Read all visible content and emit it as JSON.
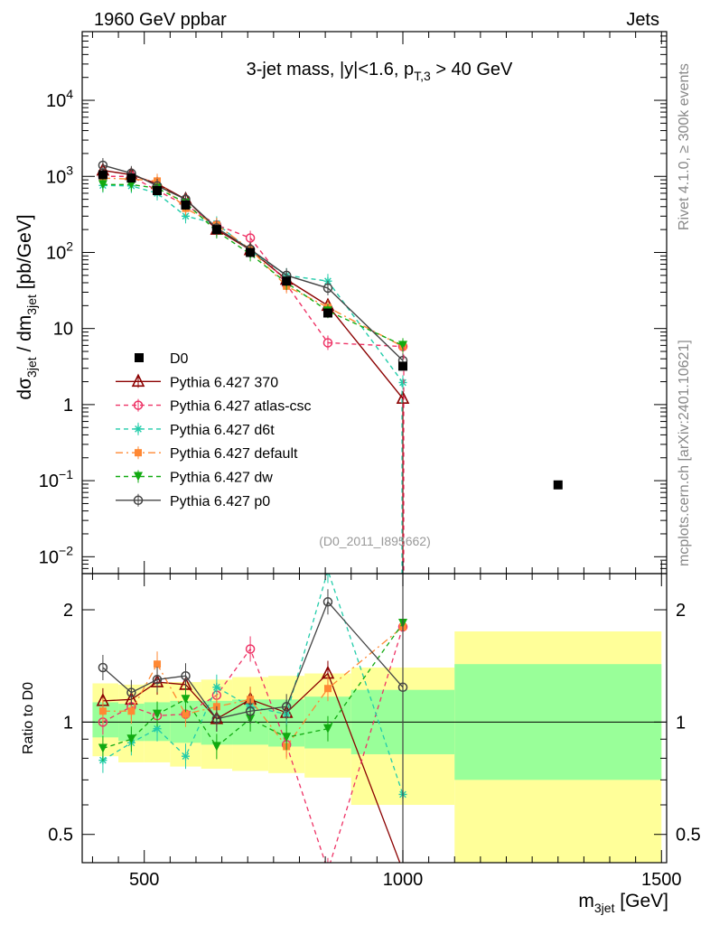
{
  "header": {
    "left": "1960 GeV ppbar",
    "right": "Jets"
  },
  "side_text": {
    "rivet": "Rivet 4.1.0, ≥ 300k events",
    "mcplots": "mcplots.cern.ch [arXiv:2401.10621]"
  },
  "colors": {
    "data": "#000000",
    "p370": "#8b0000",
    "atlas": "#ee3366",
    "d6t": "#22ccaa",
    "default": "#ff8833",
    "dw": "#11aa11",
    "p0": "#444444",
    "band_outer": "#ffff99",
    "band_inner": "#99ff99"
  },
  "chart_data": [
    {
      "type": "line",
      "panel": "main",
      "title": "3-jet mass, |y|<1.6, p_T,3 > 40 GeV",
      "title_parts": {
        "main": "3-jet mass, |y|<1.6, p",
        "sub": "T,3",
        "tail": " > 40 GeV"
      },
      "ylabel": "dσ_3jet / dm_3jet [pb/GeV]",
      "ylabel_parts": {
        "a": "dσ",
        "a_sub": "3jet",
        "b": " / dm",
        "b_sub": "3jet",
        "c": " [pb/GeV]"
      },
      "yscale": "log",
      "xlim": [
        380,
        1510
      ],
      "ylim": [
        0.006,
        80000
      ],
      "yticks": [
        {
          "value": 0.01,
          "base": "10",
          "exp": "−2"
        },
        {
          "value": 0.1,
          "base": "10",
          "exp": "−1"
        },
        {
          "value": 1,
          "label": "1"
        },
        {
          "value": 10,
          "label": "10"
        },
        {
          "value": 100,
          "base": "10",
          "exp": "2"
        },
        {
          "value": 1000,
          "base": "10",
          "exp": "3"
        },
        {
          "value": 10000,
          "base": "10",
          "exp": "4"
        }
      ],
      "watermark": "(D0_2011_I895662)",
      "legend_position": "bottom-left",
      "legend": [
        "D0",
        "Pythia 6.427 370",
        "Pythia 6.427 atlas-csc",
        "Pythia 6.427 d6t",
        "Pythia 6.427 default",
        "Pythia 6.427 dw",
        "Pythia 6.427 p0"
      ],
      "data_points": {
        "name": "D0",
        "x": [
          420,
          475,
          525,
          580,
          640,
          705,
          775,
          855,
          1000,
          1300
        ],
        "y": [
          1050,
          950,
          650,
          420,
          200,
          100,
          42,
          16,
          3.2,
          0.088
        ]
      },
      "series": [
        {
          "name": "Pythia 6.427 370",
          "key": "p370",
          "x": [
            420,
            475,
            525,
            580,
            640,
            705,
            775,
            855,
            1000
          ],
          "y": [
            1200,
            1050,
            800,
            500,
            200,
            108,
            44,
            20,
            1.2
          ]
        },
        {
          "name": "Pythia 6.427 atlas-csc",
          "key": "atlas",
          "x": [
            420,
            475,
            525,
            580,
            640,
            705,
            775,
            855,
            1000
          ],
          "y": [
            1000,
            1000,
            650,
            420,
            230,
            155,
            38,
            6.5,
            5.8
          ]
        },
        {
          "name": "Pythia 6.427 d6t",
          "key": "d6t",
          "x": [
            420,
            475,
            525,
            580,
            640,
            705,
            775,
            855,
            1000
          ],
          "y": [
            760,
            750,
            600,
            300,
            240,
            105,
            50,
            42,
            1.95
          ]
        },
        {
          "name": "Pythia 6.427 default",
          "key": "default",
          "x": [
            420,
            475,
            525,
            580,
            640,
            705,
            775,
            855,
            1000
          ],
          "y": [
            950,
            920,
            870,
            380,
            230,
            110,
            36,
            19,
            5.8
          ]
        },
        {
          "name": "Pythia 6.427 dw",
          "key": "dw",
          "x": [
            420,
            475,
            525,
            580,
            640,
            705,
            775,
            855,
            1000
          ],
          "y": [
            780,
            780,
            700,
            450,
            190,
            95,
            40,
            17,
            6.0
          ]
        },
        {
          "name": "Pythia 6.427 p0",
          "key": "p0",
          "x": [
            420,
            475,
            525,
            580,
            640,
            705,
            775,
            855,
            1000
          ],
          "y": [
            1400,
            1100,
            750,
            500,
            210,
            110,
            50,
            34,
            3.8
          ]
        }
      ]
    },
    {
      "type": "line",
      "panel": "ratio",
      "ylabel": "Ratio to D0",
      "xlabel": "m_3jet [GeV]",
      "xlabel_parts": {
        "a": "m",
        "a_sub": "3jet",
        "b": " [GeV]"
      },
      "yscale": "log",
      "xlim": [
        380,
        1510
      ],
      "ylim": [
        0.42,
        2.5
      ],
      "xticks": [
        500,
        1000,
        1500
      ],
      "yticks": [
        0.5,
        1,
        2
      ],
      "bands": [
        {
          "x0": 400,
          "x1": 450,
          "outer": [
            0.81,
            1.27
          ],
          "inner": [
            0.91,
            1.13
          ]
        },
        {
          "x0": 450,
          "x1": 500,
          "outer": [
            0.78,
            1.26
          ],
          "inner": [
            0.89,
            1.12
          ]
        },
        {
          "x0": 500,
          "x1": 550,
          "outer": [
            0.78,
            1.27
          ],
          "inner": [
            0.89,
            1.13
          ]
        },
        {
          "x0": 550,
          "x1": 610,
          "outer": [
            0.76,
            1.28
          ],
          "inner": [
            0.88,
            1.14
          ]
        },
        {
          "x0": 610,
          "x1": 670,
          "outer": [
            0.75,
            1.3
          ],
          "inner": [
            0.87,
            1.14
          ]
        },
        {
          "x0": 670,
          "x1": 740,
          "outer": [
            0.74,
            1.32
          ],
          "inner": [
            0.87,
            1.15
          ]
        },
        {
          "x0": 740,
          "x1": 810,
          "outer": [
            0.73,
            1.33
          ],
          "inner": [
            0.86,
            1.15
          ]
        },
        {
          "x0": 810,
          "x1": 900,
          "outer": [
            0.71,
            1.35
          ],
          "inner": [
            0.85,
            1.17
          ]
        },
        {
          "x0": 900,
          "x1": 1100,
          "outer": [
            0.6,
            1.4
          ],
          "inner": [
            0.82,
            1.22
          ]
        },
        {
          "x0": 1100,
          "x1": 1500,
          "outer": [
            0.42,
            1.75
          ],
          "inner": [
            0.7,
            1.43
          ]
        }
      ],
      "series": [
        {
          "name": "Pythia 6.427 370",
          "key": "p370",
          "x": [
            420,
            475,
            525,
            580,
            640,
            705,
            775,
            855,
            1000
          ],
          "y": [
            1.14,
            1.15,
            1.28,
            1.26,
            1.02,
            1.15,
            1.06,
            1.35,
            0.4
          ]
        },
        {
          "name": "Pythia 6.427 atlas-csc",
          "key": "atlas",
          "x": [
            420,
            475,
            525,
            580,
            640,
            705,
            775,
            855,
            1000
          ],
          "y": [
            1.0,
            1.1,
            1.04,
            1.05,
            1.18,
            1.57,
            0.87,
            0.4,
            1.8
          ]
        },
        {
          "name": "Pythia 6.427 d6t",
          "key": "d6t",
          "x": [
            420,
            475,
            525,
            580,
            640,
            705,
            775,
            855,
            1000
          ],
          "y": [
            0.79,
            0.88,
            0.96,
            0.81,
            1.24,
            1.1,
            1.05,
            2.55,
            0.64
          ]
        },
        {
          "name": "Pythia 6.427 default",
          "key": "default",
          "x": [
            420,
            475,
            525,
            580,
            640,
            705,
            775,
            855,
            1000
          ],
          "y": [
            1.07,
            1.07,
            1.43,
            1.05,
            1.1,
            1.15,
            0.86,
            1.23,
            1.8
          ]
        },
        {
          "name": "Pythia 6.427 dw",
          "key": "dw",
          "x": [
            420,
            475,
            525,
            580,
            640,
            705,
            775,
            855,
            1000
          ],
          "y": [
            0.85,
            0.9,
            1.05,
            1.15,
            0.86,
            1.02,
            0.91,
            0.96,
            1.84
          ]
        },
        {
          "name": "Pythia 6.427 p0",
          "key": "p0",
          "x": [
            420,
            475,
            525,
            580,
            640,
            705,
            775,
            855,
            1000
          ],
          "y": [
            1.4,
            1.2,
            1.3,
            1.33,
            1.02,
            1.07,
            1.1,
            2.1,
            1.24
          ]
        }
      ]
    }
  ]
}
